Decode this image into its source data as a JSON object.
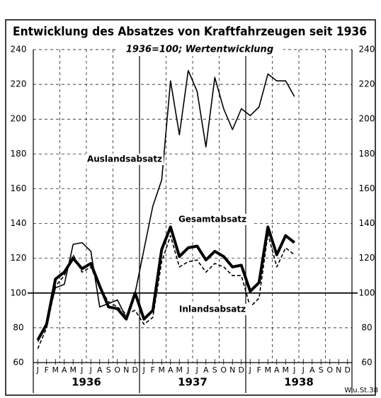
{
  "chart_data": {
    "type": "line",
    "title": "Entwicklung des Absatzes von Kraftfahrzeugen seit 1936",
    "subtitle": "1936=100; Wertentwicklung",
    "source": "W.u.St.38",
    "categories": [
      "J",
      "F",
      "M",
      "A",
      "M",
      "J",
      "J",
      "A",
      "S",
      "O",
      "N",
      "D",
      "J",
      "F",
      "M",
      "A",
      "M",
      "J",
      "J",
      "A",
      "S",
      "O",
      "N",
      "D",
      "J",
      "F",
      "M",
      "A",
      "M",
      "J",
      "J",
      "A",
      "S",
      "O",
      "N",
      "D"
    ],
    "years": [
      "1936",
      "1937",
      "1938"
    ],
    "series": [
      {
        "name": "Auslandsabsatz",
        "color": "#000000",
        "width": 1.6,
        "dash": false,
        "values": [
          72,
          83,
          103,
          105,
          128,
          129,
          124,
          92,
          94,
          96,
          86,
          100,
          125,
          150,
          165,
          222,
          191,
          228,
          216,
          184,
          224,
          206,
          194,
          206,
          202,
          207,
          226,
          222,
          222,
          213,
          null,
          null,
          null,
          null,
          null,
          null
        ]
      },
      {
        "name": "Gesamtabsatz",
        "color": "#000000",
        "width": 4,
        "dash": false,
        "values": [
          73,
          82,
          108,
          112,
          120,
          114,
          117,
          104,
          92,
          91,
          85,
          100,
          85,
          90,
          125,
          138,
          121,
          126,
          127,
          119,
          124,
          121,
          115,
          116,
          101,
          106,
          138,
          122,
          133,
          129,
          null,
          null,
          null,
          null,
          null,
          null
        ]
      },
      {
        "name": "Inlandsabsatz",
        "color": "#000000",
        "width": 1.6,
        "dash": true,
        "values": [
          68,
          80,
          104,
          110,
          122,
          112,
          115,
          103,
          95,
          92,
          88,
          90,
          82,
          86,
          118,
          133,
          115,
          118,
          119,
          112,
          117,
          115,
          110,
          110,
          92,
          97,
          134,
          115,
          126,
          122,
          null,
          null,
          null,
          null,
          null,
          null
        ]
      }
    ],
    "reference_line": 100,
    "ylim": [
      60,
      240
    ],
    "yticks": [
      60,
      80,
      100,
      120,
      140,
      160,
      180,
      200,
      220,
      240
    ],
    "grid": true
  }
}
